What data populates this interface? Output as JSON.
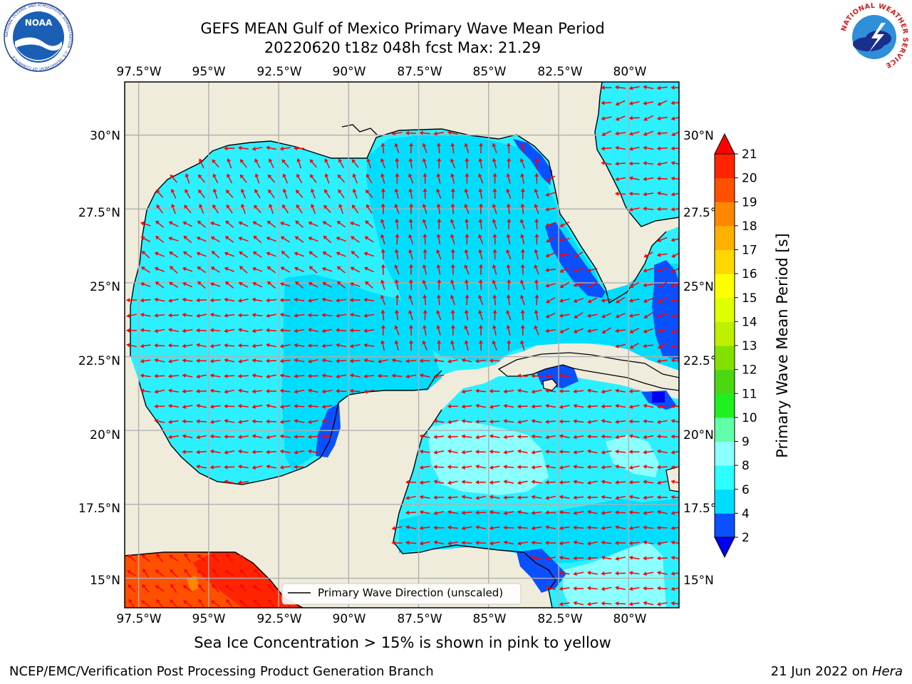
{
  "header": {
    "title_line1": "GEFS MEAN Gulf of Mexico Primary Wave Mean Period",
    "title_line2": "20220620 t18z 048h fcst   Max: 21.29"
  },
  "logos": {
    "left": "NOAA",
    "left_ring": "NATIONAL OCEANIC AND ATMOSPHERIC ADMINISTRATION · U.S. DEPARTMENT OF COMMERCE",
    "right_ring": "NATIONAL WEATHER SERVICE"
  },
  "map": {
    "lon_labels": [
      "97.5°W",
      "95°W",
      "92.5°W",
      "90°W",
      "87.5°W",
      "85°W",
      "82.5°W",
      "80°W"
    ],
    "lat_labels": [
      "30°N",
      "27.5°N",
      "25°N",
      "22.5°N",
      "20°N",
      "17.5°N",
      "15°N"
    ],
    "lon_range": [
      -98,
      -78.2
    ],
    "lat_range": [
      14.0,
      31.8
    ],
    "legend_label": "Primary Wave Direction (unscaled)",
    "vector_color": "#ff0000",
    "land_color": "#efecdc"
  },
  "colorbar": {
    "label": "Primary Wave Mean Period [s]",
    "tick_labels": [
      "2",
      "4",
      "6",
      "8",
      "9",
      "10",
      "11",
      "12",
      "13",
      "14",
      "15",
      "16",
      "17",
      "18",
      "19",
      "20",
      "21"
    ],
    "colors": [
      "#0a50ff",
      "#00ddff",
      "#2cffff",
      "#8cffff",
      "#60ffa8",
      "#20f020",
      "#4ad812",
      "#84e000",
      "#bef000",
      "#e0ff00",
      "#ffff00",
      "#ffd800",
      "#ffb000",
      "#ff8800",
      "#ff5000",
      "#ff2400"
    ],
    "under_color": "#0000ee",
    "over_color": "#ff0000"
  },
  "note": "Sea Ice Concentration > 15% is shown in pink to yellow",
  "footer": {
    "left": "NCEP/EMC/Verification Post Processing Product Generation Branch",
    "right_date": "21 Jun 2022 on ",
    "right_host": "Hera"
  }
}
